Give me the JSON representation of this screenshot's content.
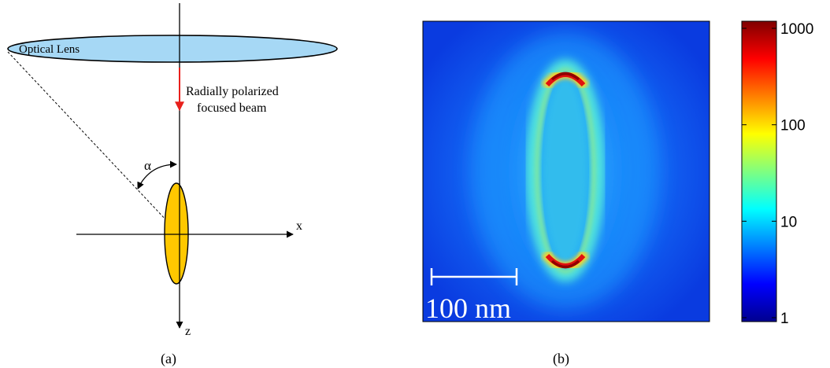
{
  "panel_a": {
    "caption": "(a)",
    "lens_label": "Optical Lens",
    "beam_label_line1": "Radially polarized",
    "beam_label_line2": "focused beam",
    "angle_label": "α",
    "x_axis_label": "x",
    "z_axis_label": "z",
    "colors": {
      "lens_fill": "#A6D8F5",
      "particle_fill": "#FFC800",
      "beam_arrow": "#E8201C",
      "axis": "#000000"
    }
  },
  "panel_b": {
    "caption": "(b)",
    "scale_bar_label": "100 nm",
    "colorbar": {
      "scale": "log",
      "min": 1,
      "max": 1000,
      "tick_labels": [
        "1000",
        "100",
        "10",
        "1"
      ],
      "colormap": "jet"
    }
  }
}
